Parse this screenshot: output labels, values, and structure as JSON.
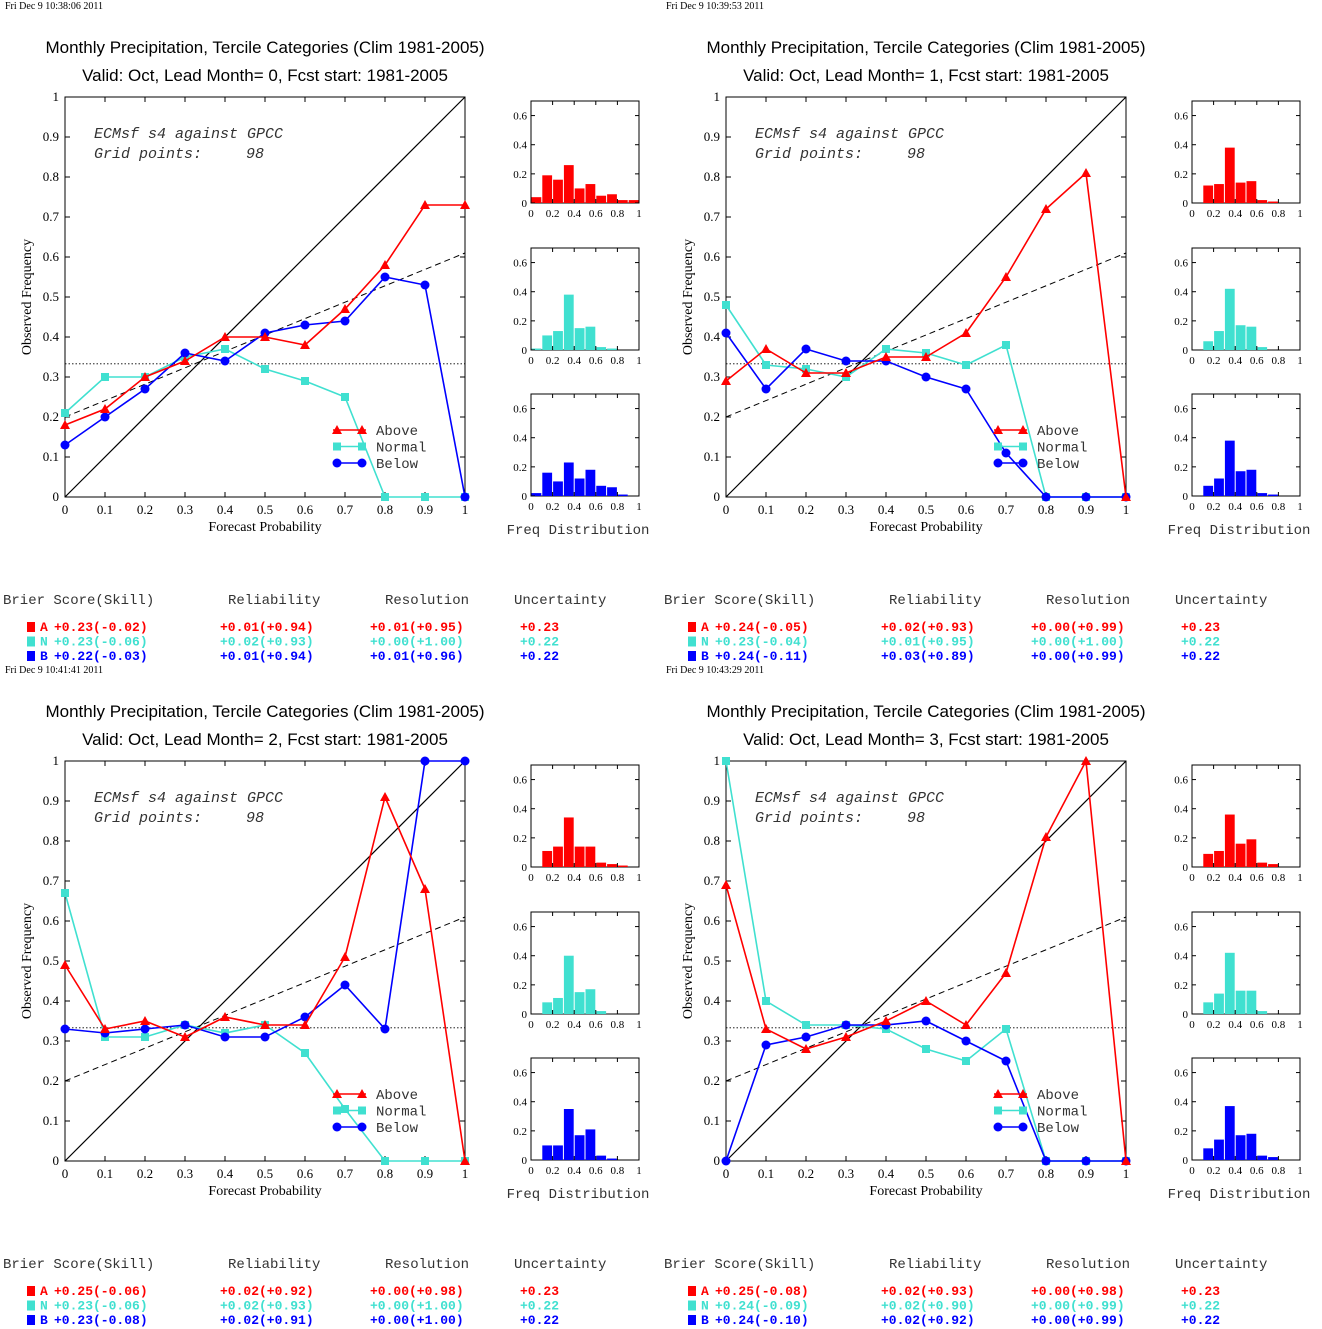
{
  "colors": {
    "A": "#ff0000",
    "N": "#40e0d0",
    "B": "#0000ff",
    "axis": "#000000"
  },
  "labels": {
    "xlabel": "Forecast Probability",
    "ylabel": "Observed Frequency",
    "freq_label": "Freq Distribution",
    "watermark_line1": "ECMsf s4 against GPCC",
    "watermark_grid_label": "Grid points:",
    "watermark_grid_value": "98",
    "legend": [
      "Above",
      "Normal",
      "Below"
    ],
    "score_headers": [
      "Brier Score(Skill)",
      "Reliability",
      "Resolution",
      "Uncertainty"
    ],
    "row_letters": [
      "A",
      "N",
      "B"
    ],
    "main_xticks": [
      "0",
      "0.1",
      "0.2",
      "0.3",
      "0.4",
      "0.5",
      "0.6",
      "0.7",
      "0.8",
      "0.9",
      "1"
    ],
    "main_yticks": [
      "0",
      "0.1",
      "0.2",
      "0.3",
      "0.4",
      "0.5",
      "0.6",
      "0.7",
      "0.8",
      "0.9",
      "1"
    ],
    "hist_xticks": [
      "0",
      "0.2",
      "0.4",
      "0.6",
      "0.8",
      "1"
    ],
    "hist_yticks": [
      "0",
      "0.2",
      "0.4",
      "0.6"
    ]
  },
  "chart_data": [
    {
      "type": "line",
      "timestamp": "Fri Dec  9 10:38:06 2011",
      "title": "Monthly Precipitation, Tercile Categories (Clim 1981-2005)",
      "subtitle": "Valid: Oct, Lead Month= 0, Fcst start: 1981-2005",
      "xlabel": "Forecast Probability",
      "ylabel": "Observed Frequency",
      "xlim": [
        0,
        1
      ],
      "ylim": [
        0,
        1
      ],
      "climatology": 0.333,
      "skill_line": [
        0.2,
        0.61
      ],
      "series": [
        {
          "name": "Above",
          "x": [
            0,
            0.1,
            0.2,
            0.3,
            0.4,
            0.5,
            0.6,
            0.7,
            0.8,
            0.9,
            1
          ],
          "values": [
            0.18,
            0.22,
            0.3,
            0.34,
            0.4,
            0.4,
            0.38,
            0.47,
            0.58,
            0.73,
            0.73
          ]
        },
        {
          "name": "Normal",
          "x": [
            0,
            0.1,
            0.2,
            0.3,
            0.4,
            0.5,
            0.6,
            0.7,
            0.8,
            0.9,
            1
          ],
          "values": [
            0.21,
            0.3,
            0.3,
            0.35,
            0.37,
            0.32,
            0.29,
            0.25,
            0.0,
            0.0,
            0.0
          ]
        },
        {
          "name": "Below",
          "x": [
            0,
            0.1,
            0.2,
            0.3,
            0.4,
            0.5,
            0.6,
            0.7,
            0.8,
            0.9,
            1
          ],
          "values": [
            0.13,
            0.2,
            0.27,
            0.36,
            0.34,
            0.41,
            0.43,
            0.44,
            0.55,
            0.53,
            0.0
          ]
        }
      ],
      "freq_distribution": {
        "ylim": [
          0,
          0.7
        ],
        "A": [
          0.04,
          0.19,
          0.16,
          0.26,
          0.1,
          0.13,
          0.05,
          0.06,
          0.02,
          0.02
        ],
        "N": [
          0.01,
          0.1,
          0.13,
          0.38,
          0.15,
          0.16,
          0.02,
          0.01,
          0.0,
          0.0
        ],
        "B": [
          0.02,
          0.16,
          0.1,
          0.23,
          0.12,
          0.18,
          0.07,
          0.06,
          0.01,
          0.0
        ]
      },
      "scores": {
        "A": [
          "+0.23(-0.02)",
          "+0.01(+0.94)",
          "+0.01(+0.95)",
          "+0.23"
        ],
        "N": [
          "+0.23(-0.06)",
          "+0.02(+0.93)",
          "+0.00(+1.00)",
          "+0.22"
        ],
        "B": [
          "+0.22(-0.03)",
          "+0.01(+0.94)",
          "+0.01(+0.96)",
          "+0.22"
        ]
      }
    },
    {
      "type": "line",
      "timestamp": "Fri Dec  9 10:39:53 2011",
      "title": "Monthly Precipitation, Tercile Categories (Clim 1981-2005)",
      "subtitle": "Valid: Oct, Lead Month= 1, Fcst start: 1981-2005",
      "xlabel": "Forecast Probability",
      "ylabel": "Observed Frequency",
      "xlim": [
        0,
        1
      ],
      "ylim": [
        0,
        1
      ],
      "climatology": 0.333,
      "skill_line": [
        0.2,
        0.61
      ],
      "series": [
        {
          "name": "Above",
          "x": [
            0,
            0.1,
            0.2,
            0.3,
            0.4,
            0.5,
            0.6,
            0.7,
            0.8,
            0.9,
            1
          ],
          "values": [
            0.29,
            0.37,
            0.31,
            0.31,
            0.35,
            0.35,
            0.41,
            0.55,
            0.72,
            0.81,
            0.0
          ]
        },
        {
          "name": "Normal",
          "x": [
            0,
            0.1,
            0.2,
            0.3,
            0.4,
            0.5,
            0.6,
            0.7,
            0.8,
            0.9,
            1
          ],
          "values": [
            0.48,
            0.33,
            0.32,
            0.3,
            0.37,
            0.36,
            0.33,
            0.38,
            0.0,
            0.0,
            0.0
          ]
        },
        {
          "name": "Below",
          "x": [
            0,
            0.1,
            0.2,
            0.3,
            0.4,
            0.5,
            0.6,
            0.7,
            0.8,
            0.9,
            1
          ],
          "values": [
            0.41,
            0.27,
            0.37,
            0.34,
            0.34,
            0.3,
            0.27,
            0.11,
            0.0,
            0.0,
            0.0
          ]
        }
      ],
      "freq_distribution": {
        "ylim": [
          0,
          0.7
        ],
        "A": [
          0.0,
          0.12,
          0.13,
          0.38,
          0.14,
          0.15,
          0.02,
          0.01,
          0.0,
          0.0
        ],
        "N": [
          0.0,
          0.06,
          0.13,
          0.42,
          0.17,
          0.16,
          0.02,
          0.0,
          0.0,
          0.0
        ],
        "B": [
          0.0,
          0.07,
          0.12,
          0.38,
          0.17,
          0.18,
          0.02,
          0.01,
          0.0,
          0.0
        ]
      },
      "scores": {
        "A": [
          "+0.24(-0.05)",
          "+0.02(+0.93)",
          "+0.00(+0.99)",
          "+0.23"
        ],
        "N": [
          "+0.23(-0.04)",
          "+0.01(+0.95)",
          "+0.00(+1.00)",
          "+0.22"
        ],
        "B": [
          "+0.24(-0.11)",
          "+0.03(+0.89)",
          "+0.00(+0.99)",
          "+0.22"
        ]
      }
    },
    {
      "type": "line",
      "timestamp": "Fri Dec  9 10:41:41 2011",
      "title": "Monthly Precipitation, Tercile Categories (Clim 1981-2005)",
      "subtitle": "Valid: Oct, Lead Month= 2, Fcst start: 1981-2005",
      "xlabel": "Forecast Probability",
      "ylabel": "Observed Frequency",
      "xlim": [
        0,
        1
      ],
      "ylim": [
        0,
        1
      ],
      "climatology": 0.333,
      "skill_line": [
        0.2,
        0.61
      ],
      "series": [
        {
          "name": "Above",
          "x": [
            0,
            0.1,
            0.2,
            0.3,
            0.4,
            0.5,
            0.6,
            0.7,
            0.8,
            0.9,
            1
          ],
          "values": [
            0.49,
            0.33,
            0.35,
            0.31,
            0.36,
            0.34,
            0.34,
            0.51,
            0.91,
            0.68,
            0.0
          ]
        },
        {
          "name": "Normal",
          "x": [
            0,
            0.1,
            0.2,
            0.3,
            0.4,
            0.5,
            0.6,
            0.7,
            0.8,
            0.9,
            1
          ],
          "values": [
            0.67,
            0.31,
            0.31,
            0.34,
            0.32,
            0.34,
            0.27,
            0.13,
            0.0,
            0.0,
            0.0
          ]
        },
        {
          "name": "Below",
          "x": [
            0,
            0.1,
            0.2,
            0.3,
            0.4,
            0.5,
            0.6,
            0.7,
            0.8,
            0.9,
            1
          ],
          "values": [
            0.33,
            0.32,
            0.33,
            0.34,
            0.31,
            0.31,
            0.36,
            0.44,
            0.33,
            1.0,
            1.0
          ]
        }
      ],
      "freq_distribution": {
        "ylim": [
          0,
          0.7
        ],
        "A": [
          0.0,
          0.11,
          0.14,
          0.34,
          0.14,
          0.14,
          0.03,
          0.02,
          0.01,
          0.0
        ],
        "N": [
          0.0,
          0.08,
          0.11,
          0.4,
          0.15,
          0.17,
          0.02,
          0.0,
          0.0,
          0.0
        ],
        "B": [
          0.0,
          0.1,
          0.1,
          0.35,
          0.17,
          0.21,
          0.03,
          0.01,
          0.0,
          0.0
        ]
      },
      "scores": {
        "A": [
          "+0.25(-0.06)",
          "+0.02(+0.92)",
          "+0.00(+0.98)",
          "+0.23"
        ],
        "N": [
          "+0.23(-0.06)",
          "+0.02(+0.93)",
          "+0.00(+1.00)",
          "+0.22"
        ],
        "B": [
          "+0.23(-0.08)",
          "+0.02(+0.91)",
          "+0.00(+1.00)",
          "+0.22"
        ]
      }
    },
    {
      "type": "line",
      "timestamp": "Fri Dec  9 10:43:29 2011",
      "title": "Monthly Precipitation, Tercile Categories (Clim 1981-2005)",
      "subtitle": "Valid: Oct, Lead Month= 3, Fcst start: 1981-2005",
      "xlabel": "Forecast Probability",
      "ylabel": "Observed Frequency",
      "xlim": [
        0,
        1
      ],
      "ylim": [
        0,
        1
      ],
      "climatology": 0.333,
      "skill_line": [
        0.2,
        0.61
      ],
      "series": [
        {
          "name": "Above",
          "x": [
            0,
            0.1,
            0.2,
            0.3,
            0.4,
            0.5,
            0.6,
            0.7,
            0.8,
            0.9,
            1
          ],
          "values": [
            0.69,
            0.33,
            0.28,
            0.31,
            0.35,
            0.4,
            0.34,
            0.47,
            0.81,
            1.0,
            0.0
          ]
        },
        {
          "name": "Normal",
          "x": [
            0,
            0.1,
            0.2,
            0.3,
            0.4,
            0.5,
            0.6,
            0.7,
            0.8,
            0.9,
            1
          ],
          "values": [
            1.0,
            0.4,
            0.34,
            0.34,
            0.33,
            0.28,
            0.25,
            0.33,
            0.0,
            0.0,
            0.0
          ]
        },
        {
          "name": "Below",
          "x": [
            0,
            0.1,
            0.2,
            0.3,
            0.4,
            0.5,
            0.6,
            0.7,
            0.8,
            0.9,
            1
          ],
          "values": [
            0.0,
            0.29,
            0.31,
            0.34,
            0.34,
            0.35,
            0.3,
            0.25,
            0.0,
            0.0,
            0.0
          ]
        }
      ],
      "freq_distribution": {
        "ylim": [
          0,
          0.7
        ],
        "A": [
          0.0,
          0.09,
          0.11,
          0.36,
          0.16,
          0.19,
          0.03,
          0.02,
          0.0,
          0.0
        ],
        "N": [
          0.0,
          0.08,
          0.14,
          0.42,
          0.16,
          0.16,
          0.02,
          0.0,
          0.0,
          0.0
        ],
        "B": [
          0.0,
          0.08,
          0.14,
          0.37,
          0.17,
          0.18,
          0.03,
          0.02,
          0.0,
          0.0
        ]
      },
      "scores": {
        "A": [
          "+0.25(-0.08)",
          "+0.02(+0.93)",
          "+0.00(+0.98)",
          "+0.23"
        ],
        "N": [
          "+0.24(-0.09)",
          "+0.02(+0.90)",
          "+0.00(+0.99)",
          "+0.22"
        ],
        "B": [
          "+0.24(-0.10)",
          "+0.02(+0.92)",
          "+0.00(+0.99)",
          "+0.22"
        ]
      }
    }
  ]
}
